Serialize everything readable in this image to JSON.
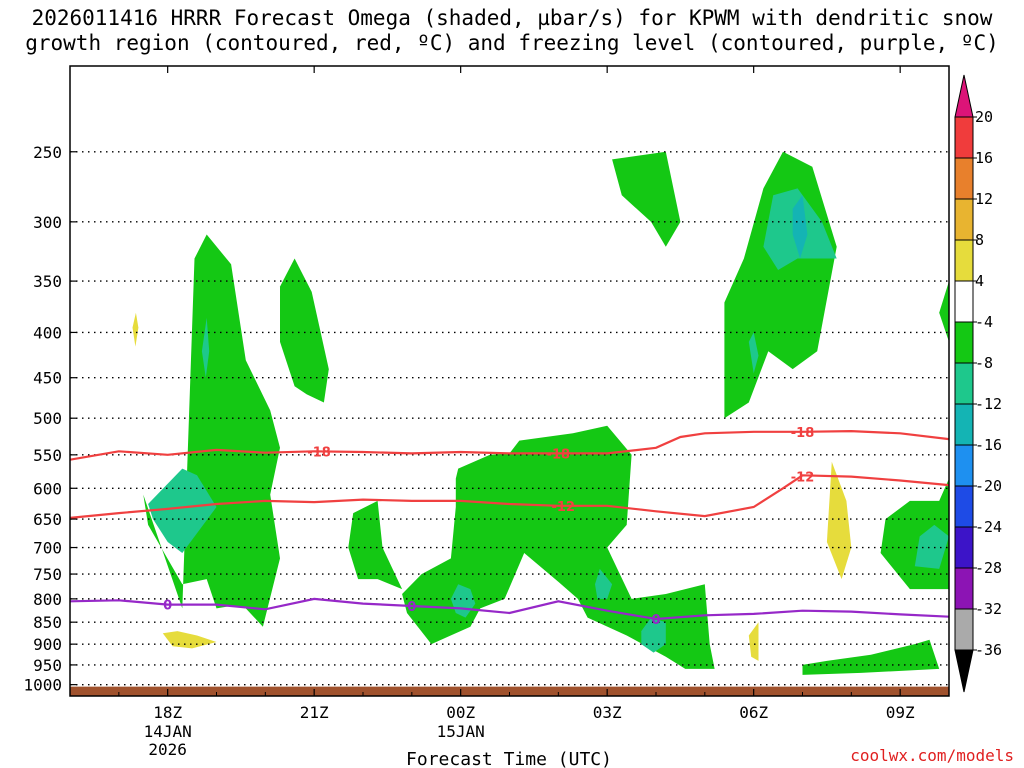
{
  "title": {
    "line1": "2026011416 HRRR Forecast Omega (shaded, µbar/s) for KPWM with dendritic snow",
    "line2": "growth region (contoured, red, ºC) and freezing level (contoured, purple, ºC)"
  },
  "credit": "coolwx.com/models",
  "chart_data": {
    "type": "time-height contour",
    "xlabel": "Forecast Time (UTC)",
    "x_range_hours": [
      -2,
      16
    ],
    "x_ticks": [
      {
        "hour": 0,
        "label": "18Z",
        "sub": [
          "14JAN",
          "2026"
        ]
      },
      {
        "hour": 3,
        "label": "21Z",
        "sub": []
      },
      {
        "hour": 6,
        "label": "00Z",
        "sub": [
          "15JAN"
        ]
      },
      {
        "hour": 9,
        "label": "03Z",
        "sub": []
      },
      {
        "hour": 12,
        "label": "06Z",
        "sub": []
      },
      {
        "hour": 15,
        "label": "09Z",
        "sub": []
      }
    ],
    "y_axis": {
      "scale": "log-pressure",
      "range_hPa": [
        1030,
        200
      ],
      "ticks": [
        250,
        300,
        350,
        400,
        450,
        500,
        550,
        600,
        650,
        700,
        750,
        800,
        850,
        900,
        950,
        1000
      ]
    },
    "ground_fill": "#a0522d",
    "colorbar": {
      "labels": [
        "20",
        "16",
        "12",
        "8",
        "4",
        "-4",
        "-8",
        "-12",
        "-16",
        "-20",
        "-24",
        "-28",
        "-32",
        "-36"
      ],
      "colors": [
        "#f03c3c",
        "#e8802c",
        "#e8b430",
        "#e6dc3c",
        "#ffffff",
        "#14c814",
        "#1ec88c",
        "#14b4b4",
        "#1e90f0",
        "#1e4be6",
        "#3c14c8",
        "#8c14b4",
        "#a01ec8",
        "#aaaaaa"
      ],
      "top_color": "#dc1478",
      "bottom_color": "#000000"
    },
    "omega_regions": [
      {
        "level": "4",
        "points": [
          [
            -0.9,
            405
          ],
          [
            -0.7,
            330
          ],
          [
            -0.45,
            305
          ],
          [
            -0.3,
            340
          ],
          [
            -0.45,
            480
          ],
          [
            -0.7,
            700
          ],
          [
            -0.95,
            620
          ],
          [
            -1.0,
            460
          ]
        ]
      },
      {
        "level": "8",
        "points": [
          [
            -0.72,
            395
          ],
          [
            -0.65,
            380
          ],
          [
            -0.6,
            395
          ],
          [
            -0.66,
            415
          ]
        ]
      },
      {
        "level": "-4",
        "points": [
          [
            0.3,
            820
          ],
          [
            0.55,
            330
          ],
          [
            0.8,
            310
          ],
          [
            1.3,
            335
          ],
          [
            1.6,
            430
          ],
          [
            2.1,
            490
          ],
          [
            2.3,
            540
          ],
          [
            2.1,
            610
          ],
          [
            2.3,
            720
          ],
          [
            1.95,
            860
          ],
          [
            1.6,
            820
          ],
          [
            1.3,
            815
          ],
          [
            1.0,
            820
          ],
          [
            0.8,
            760
          ],
          [
            0.3,
            770
          ],
          [
            -0.4,
            660
          ],
          [
            -0.5,
            610
          ]
        ]
      },
      {
        "level": "-8",
        "points": [
          [
            0.7,
            420
          ],
          [
            0.8,
            385
          ],
          [
            0.85,
            420
          ],
          [
            0.78,
            450
          ]
        ]
      },
      {
        "level": "-8",
        "points": [
          [
            -0.4,
            625
          ],
          [
            0.3,
            570
          ],
          [
            0.6,
            580
          ],
          [
            1.0,
            630
          ],
          [
            0.3,
            710
          ],
          [
            0.0,
            690
          ],
          [
            -0.3,
            650
          ]
        ]
      },
      {
        "level": "-4",
        "points": [
          [
            2.3,
            355
          ],
          [
            2.6,
            330
          ],
          [
            2.95,
            360
          ],
          [
            3.3,
            440
          ],
          [
            3.2,
            480
          ],
          [
            2.85,
            470
          ],
          [
            2.6,
            460
          ],
          [
            2.3,
            410
          ]
        ]
      },
      {
        "level": "4",
        "points": [
          [
            7.2,
            305
          ],
          [
            7.5,
            290
          ],
          [
            7.55,
            330
          ],
          [
            7.4,
            350
          ]
        ]
      },
      {
        "level": "-4",
        "points": [
          [
            9.1,
            255
          ],
          [
            10.2,
            250
          ],
          [
            10.5,
            300
          ],
          [
            10.2,
            320
          ],
          [
            9.9,
            300
          ],
          [
            9.3,
            280
          ]
        ]
      },
      {
        "level": "-4",
        "points": [
          [
            3.8,
            640
          ],
          [
            4.3,
            620
          ],
          [
            4.4,
            700
          ],
          [
            4.8,
            780
          ],
          [
            4.3,
            760
          ],
          [
            3.9,
            760
          ],
          [
            3.7,
            700
          ]
        ]
      },
      {
        "level": "-4",
        "points": [
          [
            5.9,
            585
          ],
          [
            5.95,
            570
          ],
          [
            6.6,
            550
          ],
          [
            7.0,
            548
          ],
          [
            7.2,
            530
          ],
          [
            8.3,
            520
          ],
          [
            9.0,
            510
          ],
          [
            9.5,
            550
          ],
          [
            9.4,
            660
          ],
          [
            9.0,
            700
          ],
          [
            9.5,
            800
          ],
          [
            10.2,
            790
          ],
          [
            11.0,
            770
          ],
          [
            11.1,
            900
          ],
          [
            11.2,
            960
          ],
          [
            10.6,
            960
          ],
          [
            10.2,
            930
          ],
          [
            9.4,
            880
          ],
          [
            8.6,
            840
          ],
          [
            8.4,
            800
          ],
          [
            8.0,
            765
          ],
          [
            7.3,
            710
          ],
          [
            6.9,
            800
          ],
          [
            6.4,
            820
          ],
          [
            6.2,
            860
          ],
          [
            5.4,
            900
          ],
          [
            4.9,
            830
          ],
          [
            4.8,
            790
          ],
          [
            5.2,
            750
          ],
          [
            5.8,
            720
          ],
          [
            5.9,
            630
          ]
        ]
      },
      {
        "level": "-8",
        "points": [
          [
            5.8,
            800
          ],
          [
            5.95,
            770
          ],
          [
            6.2,
            780
          ],
          [
            6.3,
            810
          ],
          [
            6.1,
            840
          ],
          [
            5.9,
            830
          ]
        ]
      },
      {
        "level": "-8",
        "points": [
          [
            8.75,
            770
          ],
          [
            8.85,
            740
          ],
          [
            9.1,
            770
          ],
          [
            9.0,
            800
          ],
          [
            8.8,
            800
          ]
        ]
      },
      {
        "level": "-8",
        "points": [
          [
            9.7,
            870
          ],
          [
            9.9,
            840
          ],
          [
            10.2,
            850
          ],
          [
            10.2,
            900
          ],
          [
            9.95,
            920
          ],
          [
            9.7,
            900
          ]
        ]
      },
      {
        "level": "-4",
        "points": [
          [
            11.4,
            500
          ],
          [
            11.4,
            370
          ],
          [
            11.8,
            330
          ],
          [
            12.2,
            275
          ],
          [
            12.6,
            250
          ],
          [
            13.2,
            260
          ],
          [
            13.7,
            320
          ],
          [
            13.3,
            420
          ],
          [
            12.8,
            440
          ],
          [
            12.3,
            420
          ],
          [
            11.9,
            480
          ]
        ]
      },
      {
        "level": "-8",
        "points": [
          [
            12.2,
            320
          ],
          [
            12.4,
            280
          ],
          [
            12.9,
            275
          ],
          [
            13.4,
            300
          ],
          [
            13.7,
            330
          ],
          [
            12.9,
            330
          ],
          [
            12.5,
            340
          ]
        ]
      },
      {
        "level": "-12",
        "points": [
          [
            12.8,
            290
          ],
          [
            13.0,
            280
          ],
          [
            13.1,
            310
          ],
          [
            12.95,
            330
          ],
          [
            12.8,
            310
          ]
        ]
      },
      {
        "level": "-8",
        "points": [
          [
            11.9,
            410
          ],
          [
            12.0,
            400
          ],
          [
            12.1,
            425
          ],
          [
            12.0,
            445
          ]
        ]
      },
      {
        "level": "4",
        "points": [
          [
            12.0,
            780
          ],
          [
            12.8,
            650
          ],
          [
            13.3,
            530
          ],
          [
            13.6,
            520
          ],
          [
            14.4,
            790
          ],
          [
            14.6,
            780
          ],
          [
            14.6,
            850
          ],
          [
            14.0,
            840
          ],
          [
            12.8,
            830
          ],
          [
            12.4,
            900
          ],
          [
            12.2,
            950
          ],
          [
            11.8,
            950
          ],
          [
            11.7,
            870
          ],
          [
            11.8,
            800
          ]
        ]
      },
      {
        "level": "8",
        "points": [
          [
            13.6,
            560
          ],
          [
            13.9,
            620
          ],
          [
            14.0,
            700
          ],
          [
            13.8,
            760
          ],
          [
            13.5,
            690
          ]
        ]
      },
      {
        "level": "8",
        "points": [
          [
            11.9,
            880
          ],
          [
            12.1,
            850
          ],
          [
            12.1,
            940
          ],
          [
            11.95,
            930
          ]
        ]
      },
      {
        "level": "-4",
        "points": [
          [
            15.8,
            620
          ],
          [
            16.0,
            585
          ],
          [
            16.0,
            780
          ],
          [
            15.2,
            780
          ],
          [
            14.6,
            710
          ],
          [
            14.7,
            650
          ],
          [
            15.2,
            620
          ]
        ]
      },
      {
        "level": "-8",
        "points": [
          [
            15.4,
            680
          ],
          [
            15.7,
            660
          ],
          [
            16.0,
            680
          ],
          [
            15.8,
            740
          ],
          [
            15.3,
            735
          ]
        ]
      },
      {
        "level": "-4",
        "points": [
          [
            15.8,
            380
          ],
          [
            16.0,
            350
          ],
          [
            16.0,
            410
          ]
        ]
      },
      {
        "level": "-4",
        "points": [
          [
            13.0,
            950
          ],
          [
            13.5,
            940
          ],
          [
            14.4,
            925
          ],
          [
            15.3,
            900
          ],
          [
            15.6,
            890
          ],
          [
            15.8,
            960
          ],
          [
            14.2,
            970
          ],
          [
            13.0,
            975
          ]
        ]
      },
      {
        "level": "4",
        "points": [
          [
            -0.3,
            855
          ],
          [
            0.1,
            840
          ],
          [
            0.5,
            850
          ],
          [
            1.2,
            880
          ],
          [
            1.9,
            925
          ],
          [
            1.3,
            950
          ],
          [
            0.6,
            960
          ],
          [
            -0.3,
            910
          ]
        ]
      },
      {
        "level": "8",
        "points": [
          [
            -0.1,
            875
          ],
          [
            0.2,
            870
          ],
          [
            0.6,
            880
          ],
          [
            1.0,
            895
          ],
          [
            0.5,
            910
          ],
          [
            0.1,
            905
          ]
        ]
      }
    ],
    "contours": [
      {
        "value": "-18",
        "color": "#f04040",
        "points": [
          [
            -2,
            557
          ],
          [
            -1,
            545
          ],
          [
            0,
            550
          ],
          [
            1,
            543
          ],
          [
            2,
            547
          ],
          [
            3,
            545
          ],
          [
            4,
            546
          ],
          [
            5,
            548
          ],
          [
            6,
            546
          ],
          [
            7,
            548
          ],
          [
            8,
            548
          ],
          [
            9,
            548
          ],
          [
            10,
            540
          ],
          [
            10.5,
            525
          ],
          [
            11,
            520
          ],
          [
            12,
            518
          ],
          [
            13,
            518
          ],
          [
            14,
            517
          ],
          [
            15,
            520
          ],
          [
            16,
            528
          ]
        ],
        "labels": [
          [
            3.1,
            545
          ],
          [
            8.0,
            548
          ],
          [
            13.0,
            518
          ]
        ]
      },
      {
        "value": "-12",
        "color": "#f04040",
        "points": [
          [
            -2,
            648
          ],
          [
            -1,
            640
          ],
          [
            0,
            633
          ],
          [
            1,
            625
          ],
          [
            2,
            620
          ],
          [
            3,
            622
          ],
          [
            4,
            618
          ],
          [
            5,
            620
          ],
          [
            6,
            620
          ],
          [
            7,
            625
          ],
          [
            8,
            628
          ],
          [
            9,
            628
          ],
          [
            10,
            637
          ],
          [
            11,
            645
          ],
          [
            12,
            630
          ],
          [
            12.6,
            600
          ],
          [
            13,
            580
          ],
          [
            14,
            582
          ],
          [
            15,
            588
          ],
          [
            16,
            595
          ]
        ],
        "labels": [
          [
            8.1,
            628
          ],
          [
            13.0,
            582
          ]
        ]
      },
      {
        "value": "0",
        "color": "#9628c8",
        "points": [
          [
            -2,
            805
          ],
          [
            -1,
            803
          ],
          [
            0,
            812
          ],
          [
            1,
            812
          ],
          [
            2,
            822
          ],
          [
            3,
            800
          ],
          [
            4,
            810
          ],
          [
            5,
            815
          ],
          [
            6,
            820
          ],
          [
            7,
            830
          ],
          [
            8,
            805
          ],
          [
            9,
            825
          ],
          [
            10,
            843
          ],
          [
            11,
            835
          ],
          [
            12,
            832
          ],
          [
            13,
            825
          ],
          [
            14,
            827
          ],
          [
            15,
            833
          ],
          [
            16,
            838
          ]
        ],
        "labels": [
          [
            0,
            812
          ],
          [
            5.0,
            815
          ],
          [
            10.0,
            843
          ]
        ]
      }
    ]
  }
}
